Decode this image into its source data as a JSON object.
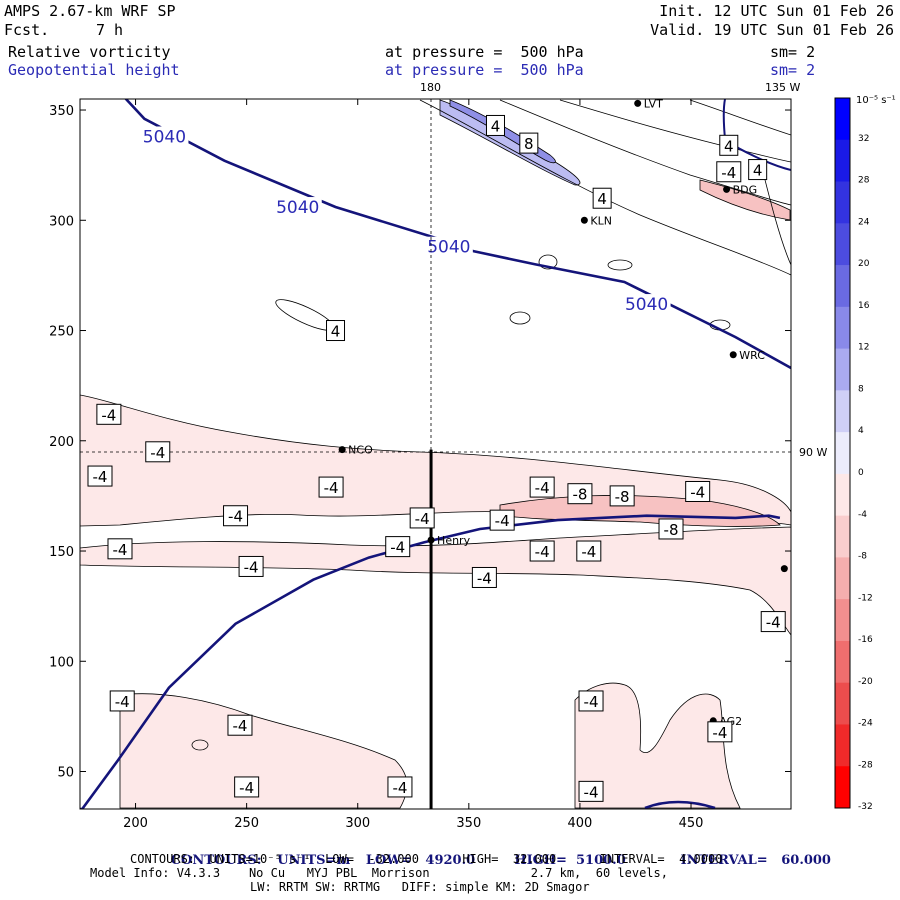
{
  "header": {
    "model": "AMPS 2.67-km WRF SP",
    "forecast_label": "Fcst.",
    "forecast_hours": "7 h",
    "init": "Init. 12 UTC Sun 01 Feb 26",
    "valid": "Valid. 19 UTC Sun 01 Feb 26",
    "field1": "Relative vorticity",
    "field1_level": "at pressure =  500 hPa",
    "field1_smooth": "sm= 2",
    "field2": "Geopotential height",
    "field2_level": "at pressure =  500 hPa",
    "field2_smooth": "sm= 2"
  },
  "map": {
    "meridian_180": "180",
    "meridian_135w": "135 W",
    "meridian_90w": "90 W",
    "x_ticks": [
      200,
      250,
      300,
      350,
      400,
      450
    ],
    "y_ticks": [
      50,
      100,
      150,
      200,
      250,
      300,
      350
    ],
    "x_range": [
      175,
      495
    ],
    "y_range": [
      33,
      355
    ],
    "height_contour_label": "5040",
    "stations": [
      {
        "name": "LVT",
        "x": 426,
        "y": 353
      },
      {
        "name": "BDG",
        "x": 466,
        "y": 314
      },
      {
        "name": "KLN",
        "x": 402,
        "y": 300
      },
      {
        "name": "WRC",
        "x": 469,
        "y": 239
      },
      {
        "name": "NCO",
        "x": 293,
        "y": 196
      },
      {
        "name": "Henry",
        "x": 333,
        "y": 155
      },
      {
        "name": "AG2",
        "x": 460,
        "y": 73
      },
      {
        "name": "",
        "x": 492,
        "y": 142
      }
    ],
    "vorticity_labels": [
      {
        "text": "4",
        "x": 362,
        "y": 343
      },
      {
        "text": "8",
        "x": 377,
        "y": 335
      },
      {
        "text": "4",
        "x": 467,
        "y": 334
      },
      {
        "text": "-4",
        "x": 467,
        "y": 322
      },
      {
        "text": "4",
        "x": 480,
        "y": 323
      },
      {
        "text": "4",
        "x": 410,
        "y": 310
      },
      {
        "text": "4",
        "x": 290,
        "y": 250
      },
      {
        "text": "-4",
        "x": 188,
        "y": 212
      },
      {
        "text": "-4",
        "x": 184,
        "y": 184
      },
      {
        "text": "-4",
        "x": 210,
        "y": 195
      },
      {
        "text": "-4",
        "x": 288,
        "y": 179
      },
      {
        "text": "-4",
        "x": 245,
        "y": 166
      },
      {
        "text": "-4",
        "x": 329,
        "y": 165
      },
      {
        "text": "-4",
        "x": 383,
        "y": 179
      },
      {
        "text": "-8",
        "x": 400,
        "y": 176
      },
      {
        "text": "-8",
        "x": 419,
        "y": 175
      },
      {
        "text": "-4",
        "x": 453,
        "y": 177
      },
      {
        "text": "-4",
        "x": 365,
        "y": 164
      },
      {
        "text": "-8",
        "x": 441,
        "y": 160
      },
      {
        "text": "-4",
        "x": 318,
        "y": 152
      },
      {
        "text": "-4",
        "x": 193,
        "y": 151
      },
      {
        "text": "-4",
        "x": 383,
        "y": 150
      },
      {
        "text": "-4",
        "x": 404,
        "y": 150
      },
      {
        "text": "-4",
        "x": 252,
        "y": 143
      },
      {
        "text": "-4",
        "x": 357,
        "y": 138
      },
      {
        "text": "-4",
        "x": 487,
        "y": 118
      },
      {
        "text": "-4",
        "x": 194,
        "y": 82
      },
      {
        "text": "-4",
        "x": 405,
        "y": 82
      },
      {
        "text": "-4",
        "x": 247,
        "y": 71
      },
      {
        "text": "-4",
        "x": 463,
        "y": 68
      },
      {
        "text": "-4",
        "x": 250,
        "y": 43
      },
      {
        "text": "-4",
        "x": 319,
        "y": 43
      },
      {
        "text": "-4",
        "x": 405,
        "y": 41
      }
    ],
    "geopotential_contour": [
      [
        192,
        359
      ],
      [
        204,
        346
      ],
      [
        240,
        327
      ],
      [
        290,
        306
      ],
      [
        335,
        292
      ],
      [
        352,
        286
      ],
      [
        380,
        280
      ],
      [
        420,
        272
      ],
      [
        470,
        247
      ],
      [
        495,
        233
      ]
    ],
    "geopotential_label_positions": [
      [
        213,
        338
      ],
      [
        273,
        306
      ],
      [
        341,
        288
      ],
      [
        430,
        262
      ]
    ],
    "geopotential_contour_south": [
      [
        162,
        33
      ],
      [
        176,
        33
      ],
      [
        192,
        55
      ],
      [
        215,
        88
      ],
      [
        245,
        117
      ],
      [
        280,
        137
      ],
      [
        305,
        147
      ],
      [
        330,
        154
      ],
      [
        355,
        160
      ],
      [
        390,
        164
      ],
      [
        430,
        166
      ],
      [
        470,
        165
      ],
      [
        485,
        166
      ],
      [
        490,
        165
      ]
    ],
    "cross_section_line": {
      "x": 333,
      "y_from": 33,
      "y_to": 196
    }
  },
  "colorbar": {
    "unit_label": "10⁻⁵ s⁻¹",
    "ticks": [
      "32",
      "28",
      "24",
      "20",
      "16",
      "12",
      "8",
      "4",
      "0",
      "-4",
      "-8",
      "-12",
      "-16",
      "-20",
      "-24",
      "-28",
      "-32"
    ],
    "colors": [
      "#0000ff",
      "#1a1ae6",
      "#3333e0",
      "#4c4cdf",
      "#6a6ae2",
      "#8989e9",
      "#aaaaf0",
      "#cfcff7",
      "#ececfc",
      "#fde8e8",
      "#f9cdcd",
      "#f5aeae",
      "#f28f8f",
      "#ef6e6e",
      "#ec4d4d",
      "#f02a2a",
      "#ff0000"
    ]
  },
  "footer": {
    "line1_prefix": "CONTOURS:",
    "line1_units": "UNITS=m",
    "line1_low": "LOW=   4920.0",
    "line1_high": "HIGH=  5100.0",
    "line1_interval": "INTERVAL=   60.000",
    "line2": "CONTOURS:  UNITS=10⁻⁵ s⁻¹  LOW=  -32.000      HIGH=  32.000      INTERVAL=  4.0000",
    "line3": "Model Info: V4.3.3    No Cu   MYJ PBL  Morrison              2.7 km,  60 levels,",
    "line4": "LW: RRTM SW: RRTMG   DIFF: simple KM: 2D Smagor"
  }
}
